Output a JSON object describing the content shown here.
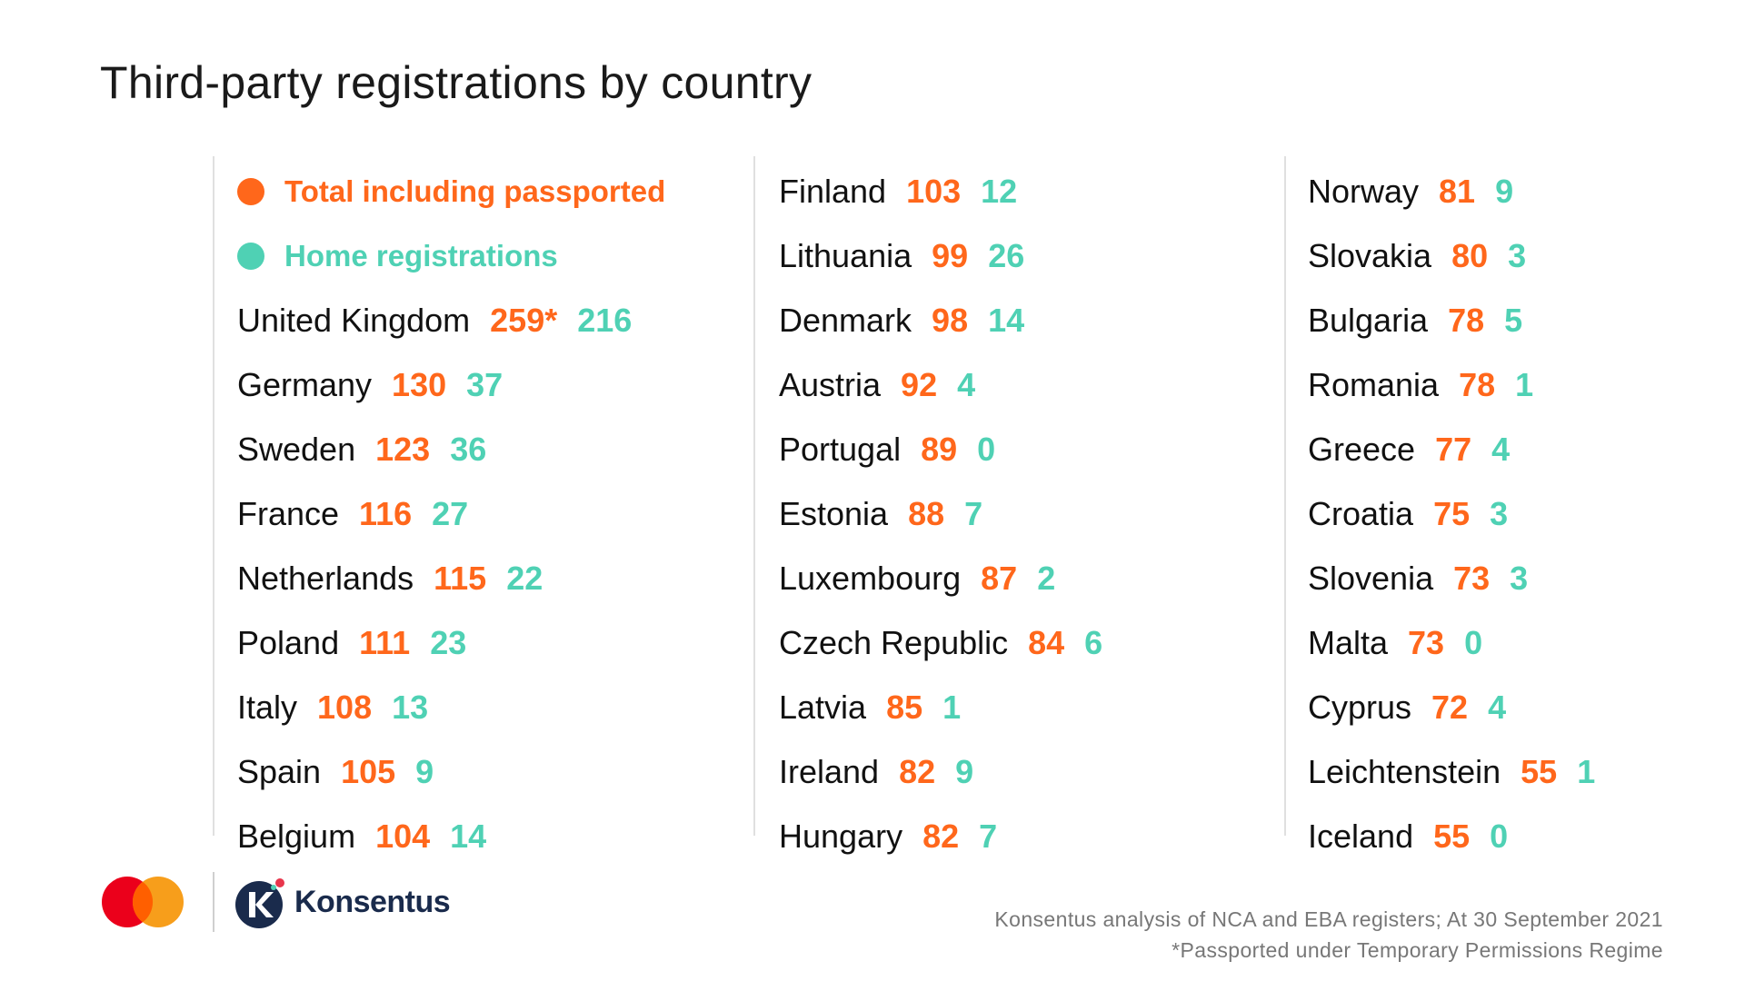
{
  "title": "Third-party registrations by country",
  "colors": {
    "total": "#ff671b",
    "home": "#4fd1b4",
    "text": "#111111"
  },
  "chart_data": {
    "type": "table",
    "title": "Third-party registrations by country",
    "legend": [
      {
        "name": "Total including passported",
        "color": "#ff671b"
      },
      {
        "name": "Home registrations",
        "color": "#4fd1b4"
      }
    ],
    "columns": [
      [
        {
          "country": "United Kingdom",
          "total": "259*",
          "home": "216"
        },
        {
          "country": "Germany",
          "total": "130",
          "home": "37"
        },
        {
          "country": "Sweden",
          "total": "123",
          "home": "36"
        },
        {
          "country": "France",
          "total": "116",
          "home": "27"
        },
        {
          "country": "Netherlands",
          "total": "115",
          "home": "22"
        },
        {
          "country": "Poland",
          "total": "111",
          "home": "23"
        },
        {
          "country": "Italy",
          "total": "108",
          "home": "13"
        },
        {
          "country": "Spain",
          "total": "105",
          "home": "9"
        },
        {
          "country": "Belgium",
          "total": "104",
          "home": "14"
        }
      ],
      [
        {
          "country": "Finland",
          "total": "103",
          "home": "12"
        },
        {
          "country": "Lithuania",
          "total": "99",
          "home": "26"
        },
        {
          "country": "Denmark",
          "total": "98",
          "home": "14"
        },
        {
          "country": "Austria",
          "total": "92",
          "home": "4"
        },
        {
          "country": "Portugal",
          "total": "89",
          "home": "0"
        },
        {
          "country": "Estonia",
          "total": "88",
          "home": "7"
        },
        {
          "country": "Luxembourg",
          "total": "87",
          "home": "2"
        },
        {
          "country": "Czech Republic",
          "total": "84",
          "home": "6"
        },
        {
          "country": "Latvia",
          "total": "85",
          "home": "1"
        },
        {
          "country": "Ireland",
          "total": "82",
          "home": "9"
        },
        {
          "country": "Hungary",
          "total": "82",
          "home": "7"
        }
      ],
      [
        {
          "country": "Norway",
          "total": "81",
          "home": "9"
        },
        {
          "country": "Slovakia",
          "total": "80",
          "home": "3"
        },
        {
          "country": "Bulgaria",
          "total": "78",
          "home": "5"
        },
        {
          "country": "Romania",
          "total": "78",
          "home": "1"
        },
        {
          "country": "Greece",
          "total": "77",
          "home": "4"
        },
        {
          "country": "Croatia",
          "total": "75",
          "home": "3"
        },
        {
          "country": "Slovenia",
          "total": "73",
          "home": "3"
        },
        {
          "country": "Malta",
          "total": "73",
          "home": "0"
        },
        {
          "country": "Cyprus",
          "total": "72",
          "home": "4"
        },
        {
          "country": "Leichtenstein",
          "total": "55",
          "home": "1"
        },
        {
          "country": "Iceland",
          "total": "55",
          "home": "0"
        }
      ]
    ]
  },
  "footer": {
    "brand": "Konsentus",
    "source_line": "Konsentus analysis of NCA and EBA registers; At 30 September 2021",
    "footnote": "*Passported under Temporary Permissions Regime"
  }
}
